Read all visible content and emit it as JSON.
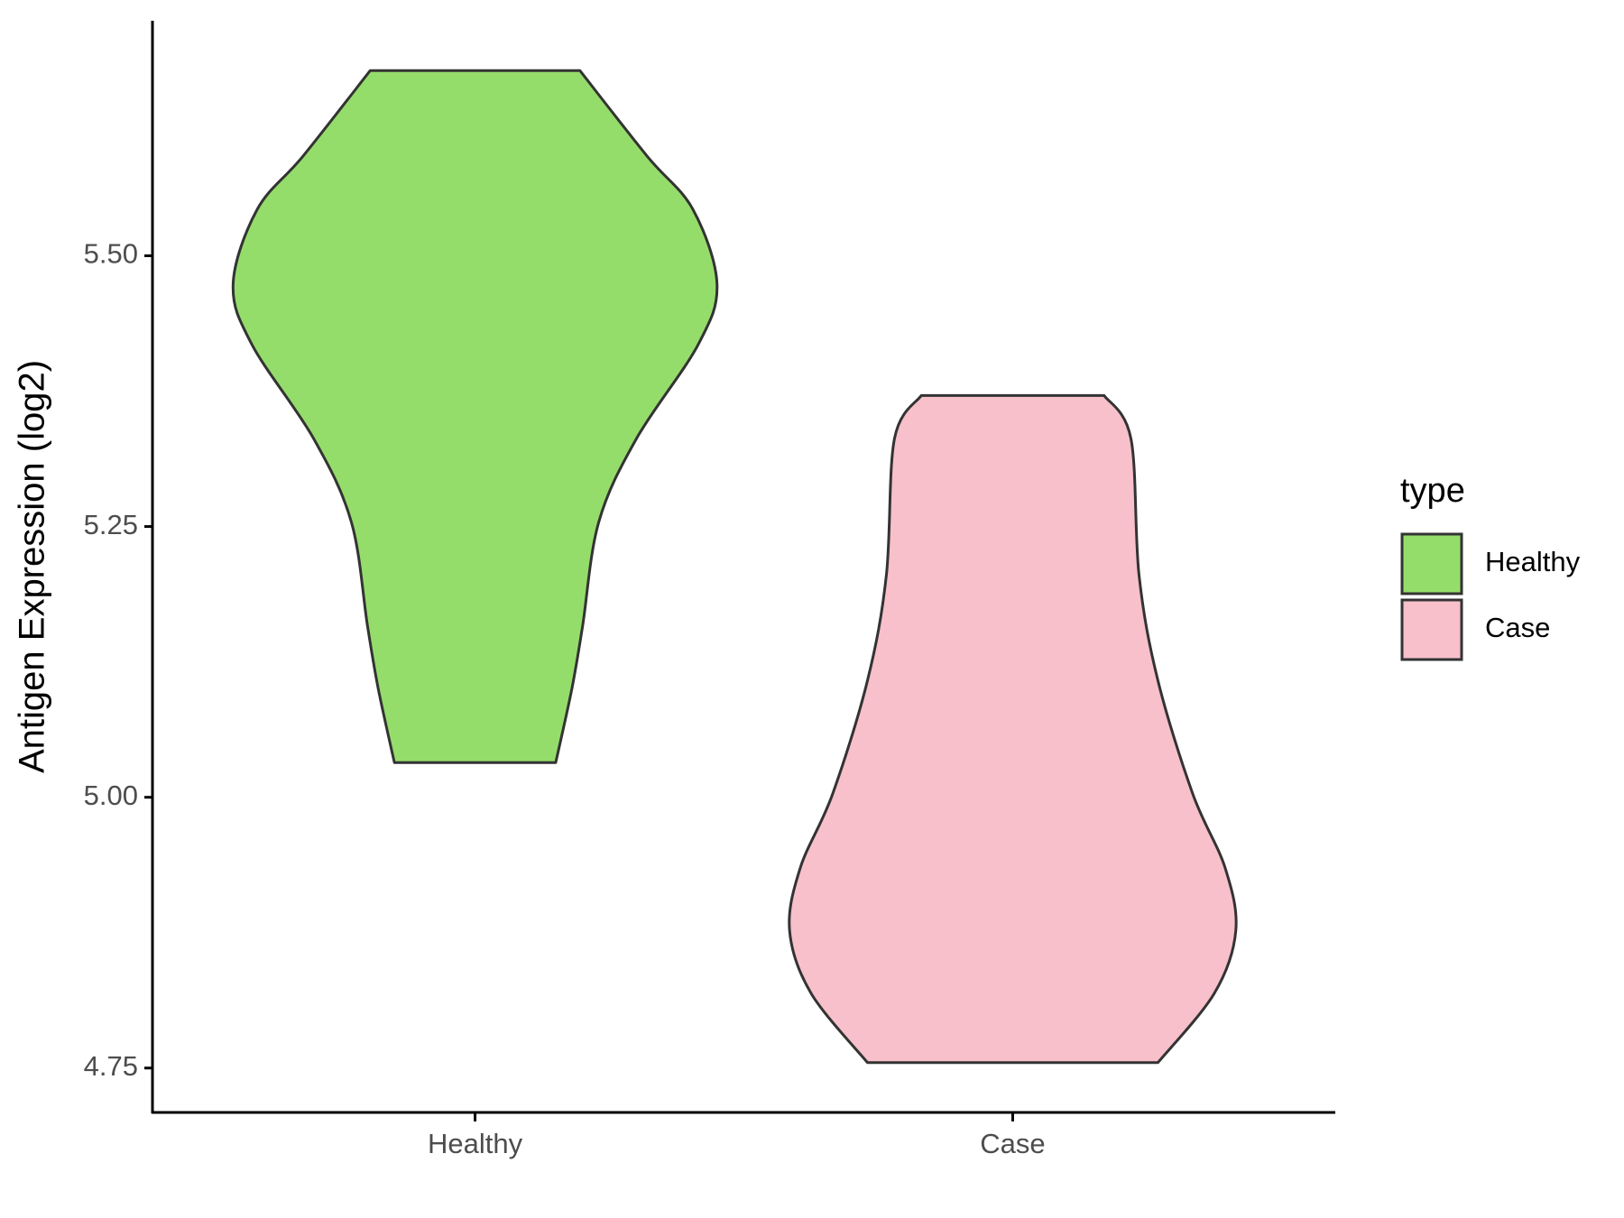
{
  "chart_data": {
    "type": "violin",
    "y_label": "Antigen Expression (log2)",
    "ylim": [
      4.709,
      5.717
    ],
    "yticks": [
      {
        "value": 4.75,
        "label": "4.75"
      },
      {
        "value": 5.0,
        "label": "5.00"
      },
      {
        "value": 5.25,
        "label": "5.25"
      },
      {
        "value": 5.5,
        "label": "5.50"
      }
    ],
    "categories": [
      "Healthy",
      "Case"
    ],
    "legend_title": "type",
    "series": [
      {
        "name": "Healthy",
        "color": "#95dd6b",
        "y": [
          5.671,
          5.592,
          5.543,
          5.474,
          5.418,
          5.331,
          5.254,
          5.158,
          5.1,
          5.032
        ],
        "density": [
          0.39,
          0.64,
          0.81,
          0.9,
          0.83,
          0.6,
          0.46,
          0.4,
          0.36,
          0.3
        ]
      },
      {
        "name": "Case",
        "color": "#f7c0cb",
        "y": [
          5.371,
          5.331,
          5.205,
          5.108,
          5.003,
          4.935,
          4.877,
          4.819,
          4.755
        ],
        "density": [
          0.34,
          0.44,
          0.47,
          0.54,
          0.67,
          0.79,
          0.83,
          0.75,
          0.54
        ]
      }
    ]
  }
}
